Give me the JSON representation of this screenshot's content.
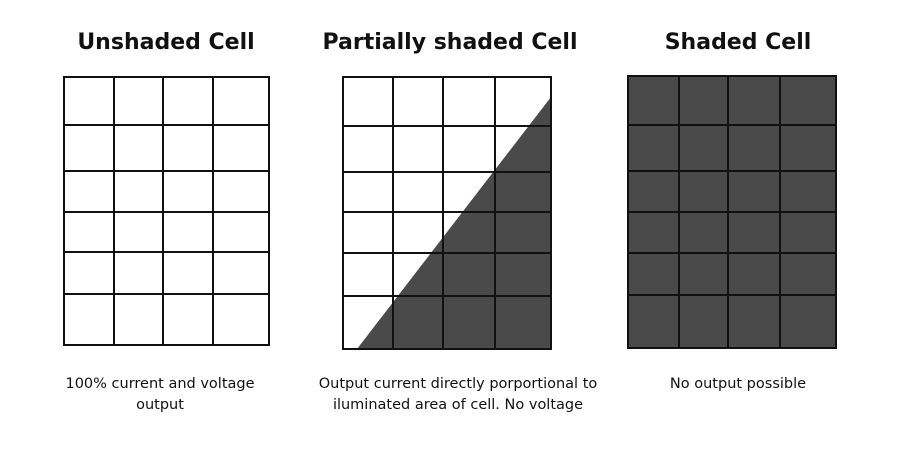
{
  "panels": [
    {
      "title": "Unshaded Cell",
      "caption_lines": [
        "100% current and voltage",
        "output"
      ],
      "shading": "none"
    },
    {
      "title": "Partially shaded Cell",
      "caption_lines": [
        "Output current directly porportional to",
        "iluminated area of cell. No voltage"
      ],
      "shading": "diagonal"
    },
    {
      "title": "Shaded Cell",
      "caption_lines": [
        "No output possible"
      ],
      "shading": "full"
    }
  ],
  "grid": {
    "columns": 4,
    "rows": 6
  },
  "colors": {
    "line": "#111111",
    "shade": "#4a4a4a",
    "background": "#ffffff"
  }
}
